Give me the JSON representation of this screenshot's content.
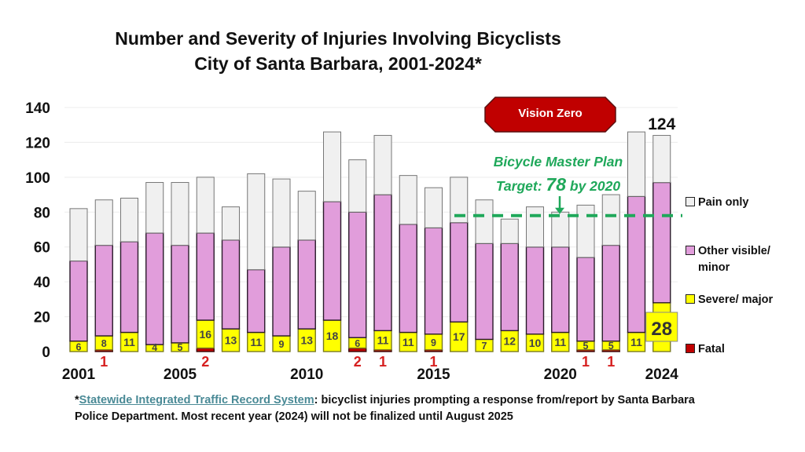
{
  "chart_data": {
    "type": "bar",
    "stacked": true,
    "title": "Number and Severity of Injuries Involving Bicyclists",
    "subtitle": "City of Santa Barbara, 2001-2024*",
    "xlabel": "",
    "ylabel": "",
    "ylim": [
      0,
      140
    ],
    "yticks": [
      0,
      20,
      40,
      60,
      80,
      100,
      120,
      140
    ],
    "grid": true,
    "legend_position": "right",
    "categories": [
      "2001",
      "2002",
      "2003",
      "2004",
      "2005",
      "2006",
      "2007",
      "2008",
      "2009",
      "2010",
      "2011",
      "2012",
      "2013",
      "2014",
      "2015",
      "2016",
      "2017",
      "2018",
      "2019",
      "2020",
      "2021",
      "2022",
      "2023",
      "2024"
    ],
    "xtick_labels": [
      {
        "category": "2001",
        "label": "2001"
      },
      {
        "category": "2005",
        "label": "2005"
      },
      {
        "category": "2010",
        "label": "2010"
      },
      {
        "category": "2015",
        "label": "2015"
      },
      {
        "category": "2020",
        "label": "2020"
      },
      {
        "category": "2024",
        "label": "2024"
      }
    ],
    "series": [
      {
        "name": "Fatal",
        "color": "#c00000",
        "values": [
          0,
          1,
          0,
          0,
          0,
          2,
          0,
          0,
          0,
          0,
          0,
          2,
          1,
          0,
          1,
          0,
          0,
          0,
          0,
          0,
          1,
          1,
          0,
          0
        ]
      },
      {
        "name": "Severe/ major",
        "color": "#ffff00",
        "values": [
          6,
          8,
          11,
          4,
          5,
          16,
          13,
          11,
          9,
          13,
          18,
          6,
          11,
          11,
          9,
          17,
          7,
          12,
          10,
          11,
          5,
          5,
          11,
          28
        ]
      },
      {
        "name": "Other visible/ minor",
        "color": "#e19ddb",
        "values": [
          46,
          52,
          52,
          64,
          56,
          50,
          51,
          36,
          51,
          51,
          68,
          72,
          78,
          62,
          61,
          57,
          55,
          50,
          50,
          49,
          48,
          55,
          78,
          69
        ]
      },
      {
        "name": "Pain only",
        "color": "#f0f0f0",
        "values": [
          30,
          26,
          25,
          29,
          36,
          32,
          19,
          55,
          39,
          28,
          40,
          30,
          34,
          28,
          23,
          26,
          25,
          14,
          23,
          20,
          30,
          29,
          37,
          27
        ]
      }
    ],
    "totals": [
      82,
      87,
      88,
      97,
      97,
      100,
      83,
      102,
      99,
      92,
      126,
      110,
      124,
      101,
      94,
      100,
      87,
      76,
      83,
      80,
      84,
      90,
      126,
      124
    ],
    "fatal_labels": [
      {
        "category": "2002",
        "label": "1"
      },
      {
        "category": "2006",
        "label": "2"
      },
      {
        "category": "2012",
        "label": "2"
      },
      {
        "category": "2013",
        "label": "1"
      },
      {
        "category": "2015",
        "label": "1"
      },
      {
        "category": "2021",
        "label": "1"
      },
      {
        "category": "2022",
        "label": "1"
      }
    ],
    "annotations": {
      "total_2024_label": "124",
      "severe_2024_label": "28",
      "target_value": 78,
      "target_line_label": [
        "Bicycle Master Plan",
        "Target: ",
        "78",
        " by 2020"
      ],
      "vision_zero": "Vision Zero"
    }
  },
  "legend": [
    {
      "label": "Pain only",
      "color": "#f0f0f0"
    },
    {
      "label": "Other visible/",
      "label2": "minor",
      "color": "#e19ddb"
    },
    {
      "label": "Severe/ major",
      "color": "#ffff00"
    },
    {
      "label": "Fatal",
      "color": "#c00000"
    }
  ],
  "footnote": {
    "star": "*",
    "link_text": "Statewide Integrated Traffic Record System",
    "text": ": bicyclist injuries prompting a response from/report by Santa Barbara Police Department. Most recent year (2024) will not be finalized until August 2025"
  },
  "colors": {
    "target_green": "#1fa85a",
    "fatal_red_label": "#d62020",
    "vision_zero_fill": "#c00000"
  }
}
